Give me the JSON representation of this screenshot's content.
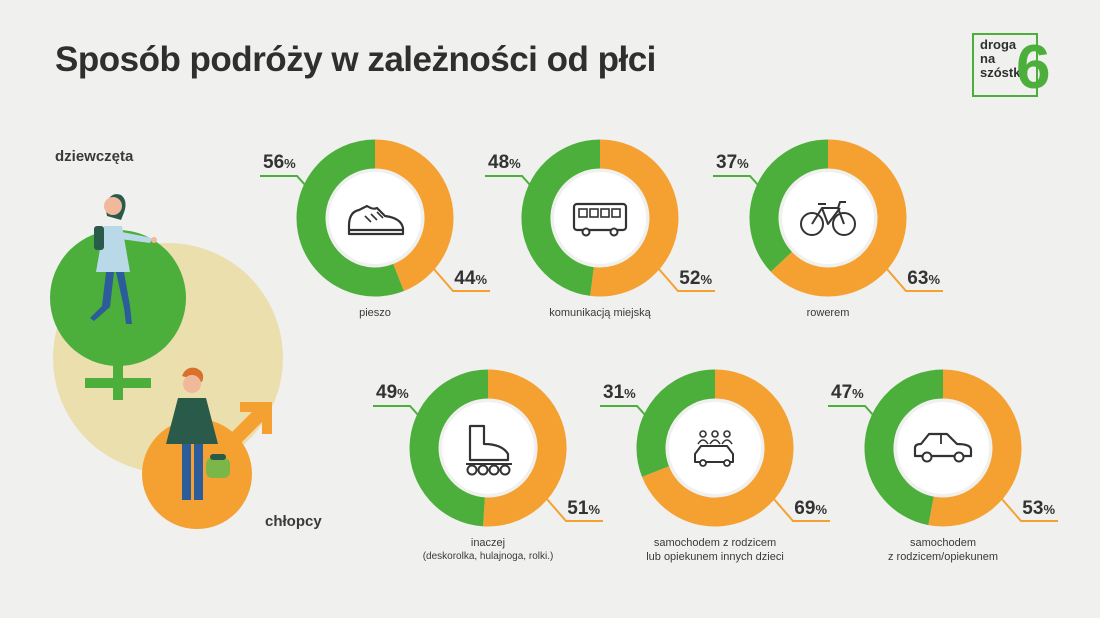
{
  "title": "Sposób podróży w zależności od płci",
  "logo": {
    "line1": "droga",
    "line2": "na",
    "line3": "szóstkę",
    "six": "6"
  },
  "labels": {
    "girls": "dziewczęta",
    "boys": "chłopcy"
  },
  "colors": {
    "girls": "#4caf3c",
    "boys": "#f5a132",
    "bg_circle": "#ecdfae",
    "page": "#f0f0ef"
  },
  "chart_data": {
    "type": "pie",
    "title": "Sposób podróży w zależności od płci",
    "series": [
      {
        "name": "dziewczęta"
      },
      {
        "name": "chłopcy"
      }
    ],
    "charts": [
      {
        "category": "pieszo",
        "caption": [
          "pieszo"
        ],
        "icon": "shoe-icon",
        "girls": 56,
        "boys": 44
      },
      {
        "category": "komunikacją miejską",
        "caption": [
          "komunikacją miejską"
        ],
        "icon": "bus-icon",
        "girls": 48,
        "boys": 52
      },
      {
        "category": "rowerem",
        "caption": [
          "rowerem"
        ],
        "icon": "bicycle-icon",
        "girls": 37,
        "boys": 63
      },
      {
        "category": "inaczej",
        "caption": [
          "inaczej",
          "(deskorolka, hulajnoga, rolki.)"
        ],
        "icon": "rollerskate-icon",
        "girls": 49,
        "boys": 51
      },
      {
        "category": "samochodem z rodzicem lub opiekunem innych dzieci",
        "caption": [
          "samochodem z rodzicem",
          "lub opiekunem innych dzieci"
        ],
        "icon": "carpool-icon",
        "girls": 31,
        "boys": 69
      },
      {
        "category": "samochodem z rodzicem/opiekunem",
        "caption": [
          "samochodem",
          "z rodzicem/opiekunem"
        ],
        "icon": "car-icon",
        "girls": 47,
        "boys": 53
      }
    ]
  }
}
